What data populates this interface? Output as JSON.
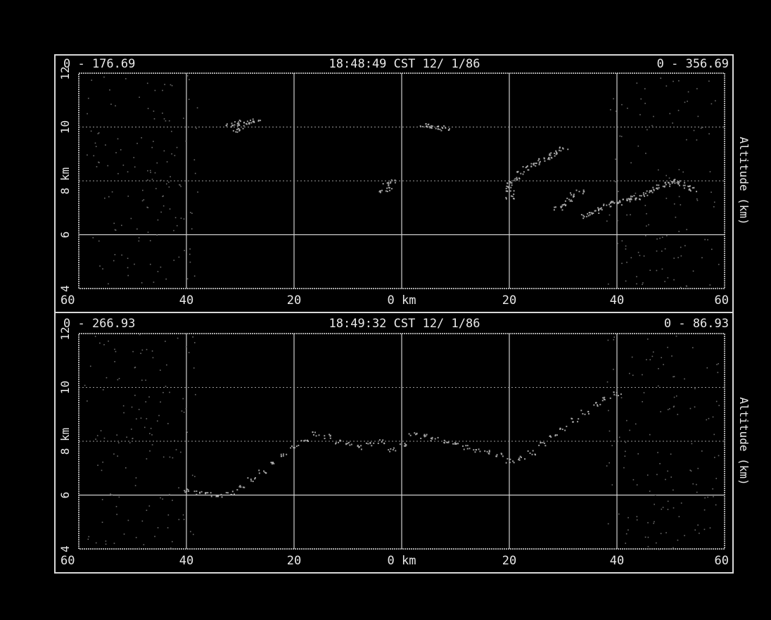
{
  "chart_data": [
    {
      "type": "scatter",
      "panel": "top",
      "header_left": "0 - 176.69",
      "header_center": "18:48:49 CST 12/ 1/86",
      "header_right": "0 - 356.69",
      "ylabel": "Altitude (km)",
      "x_center_label": "0 km",
      "x_tick_labels": [
        "60",
        "40",
        "20",
        "0 km",
        "20",
        "40",
        "60"
      ],
      "x_ticks": [
        -60,
        -40,
        -20,
        0,
        20,
        40,
        60
      ],
      "xlim": [
        -60,
        60
      ],
      "y_tick_labels": [
        "4",
        "6",
        "8 km",
        "10",
        "12"
      ],
      "y_ticks": [
        4,
        6,
        8,
        10,
        12
      ],
      "ylim": [
        4,
        12
      ],
      "grid": true,
      "series": [
        {
          "x": [
            -32,
            -31,
            -30,
            -29,
            -28,
            -27,
            -31,
            -30,
            4,
            5,
            6,
            7,
            8,
            -3,
            -2,
            -2.5,
            -3.5,
            20,
            21,
            22,
            23,
            24,
            25,
            26,
            27,
            28,
            29,
            30,
            20,
            20,
            20,
            29,
            30,
            31,
            32,
            33,
            34,
            35,
            36,
            37,
            38,
            39,
            40,
            41,
            42,
            43,
            44,
            45,
            46,
            47,
            48,
            49,
            50,
            51,
            52,
            53,
            54
          ],
          "y": [
            10.1,
            10.15,
            10.2,
            10.2,
            10.25,
            10.2,
            9.9,
            10.0,
            10.1,
            10.05,
            10.0,
            10.0,
            9.95,
            7.9,
            8.0,
            7.7,
            7.6,
            8.0,
            8.1,
            8.3,
            8.5,
            8.6,
            8.7,
            8.8,
            8.9,
            9.0,
            9.1,
            9.2,
            7.8,
            7.6,
            7.4,
            7.0,
            7.1,
            7.3,
            7.5,
            7.6,
            6.7,
            6.8,
            6.9,
            7.0,
            7.1,
            7.2,
            7.2,
            7.3,
            7.3,
            7.4,
            7.4,
            7.5,
            7.6,
            7.7,
            7.8,
            7.9,
            8.0,
            8.0,
            7.9,
            7.8,
            7.7
          ]
        }
      ]
    },
    {
      "type": "scatter",
      "panel": "bottom",
      "header_left": "0 - 266.93",
      "header_center": "18:49:32 CST 12/ 1/86",
      "header_right": "0 - 86.93",
      "ylabel": "Altitude (km)",
      "x_center_label": "0 km",
      "x_tick_labels": [
        "60",
        "40",
        "20",
        "0 km",
        "20",
        "40",
        "60"
      ],
      "x_ticks": [
        -60,
        -40,
        -20,
        0,
        20,
        40,
        60
      ],
      "xlim": [
        -60,
        60
      ],
      "y_tick_labels": [
        "4",
        "6",
        "8 km",
        "10",
        "12"
      ],
      "y_ticks": [
        4,
        6,
        8,
        10,
        12
      ],
      "ylim": [
        4,
        12
      ],
      "grid": true,
      "series": [
        {
          "x": [
            -40,
            -38,
            -36,
            -34,
            -32,
            -30,
            -28,
            -26,
            -24,
            -22,
            -20,
            -18,
            -16,
            -14,
            -12,
            -10,
            -8,
            -6,
            -4,
            -2,
            0,
            2,
            4,
            6,
            8,
            10,
            12,
            14,
            16,
            18,
            20,
            22,
            24,
            26,
            28,
            30,
            32,
            34,
            36,
            38,
            40
          ],
          "y": [
            6.2,
            6.1,
            6.05,
            6.0,
            6.1,
            6.3,
            6.6,
            6.9,
            7.2,
            7.5,
            7.8,
            8.1,
            8.3,
            8.2,
            8.0,
            7.9,
            7.8,
            7.9,
            8.0,
            7.7,
            7.9,
            8.3,
            8.2,
            8.1,
            8.0,
            7.9,
            7.8,
            7.7,
            7.6,
            7.5,
            7.3,
            7.4,
            7.6,
            7.9,
            8.2,
            8.5,
            8.8,
            9.1,
            9.4,
            9.6,
            9.8
          ]
        }
      ]
    }
  ]
}
